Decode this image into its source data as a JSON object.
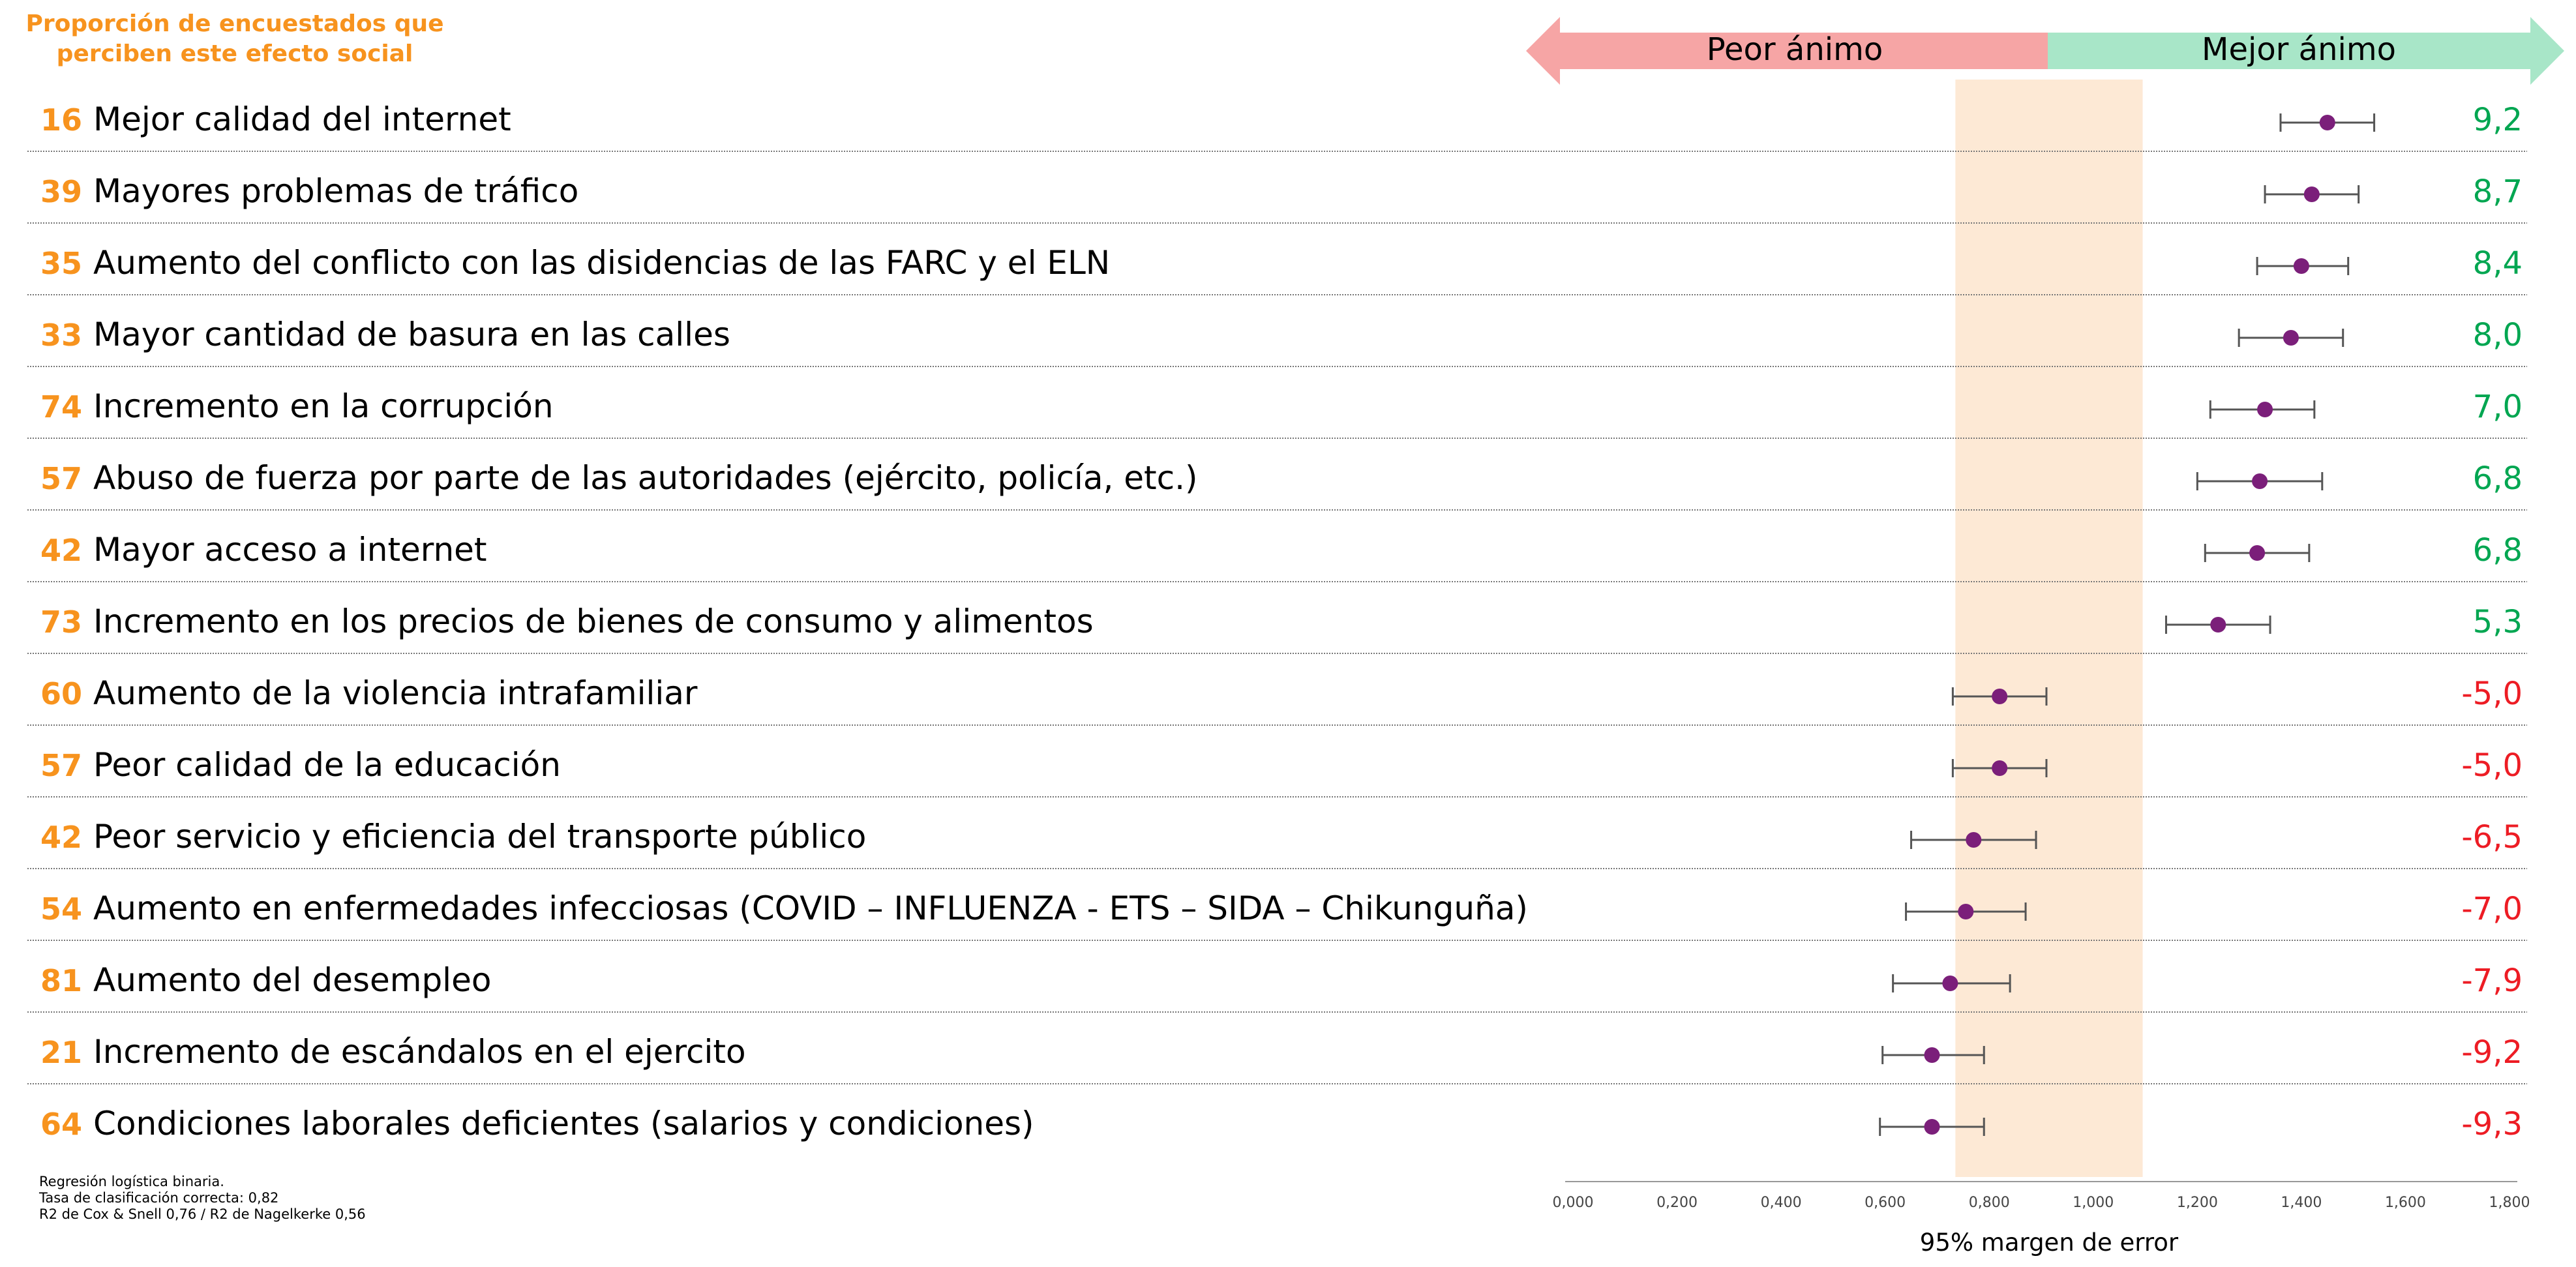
{
  "header": {
    "left_title": "Proporción de encuestados que perciben este efecto social",
    "left_title_lines": [
      "Proporción de encuestados que",
      "perciben este efecto social"
    ]
  },
  "notes": [
    "Regresión logística binaria.",
    "Tasa de clasificación correcta: 0,82",
    "R2 de Cox & Snell 0,76 / R2 de Nagelkerke 0,56"
  ],
  "colors": {
    "orange": "#F7931E",
    "positive": "#00A651",
    "negative": "#ED1C24",
    "point": "#7B1F7A",
    "arrow_left": "#F6A5A5",
    "arrow_right": "#A8E6C8",
    "band": "#FDE9D5"
  },
  "chart_data": {
    "type": "scatter",
    "subtype": "forest-plot",
    "xlabel": "95% margen de error",
    "xlim": [
      0,
      1.8
    ],
    "xticks": [
      "0,000",
      "0,200",
      "0,400",
      "0,600",
      "0,800",
      "1,000",
      "1,200",
      "1,400",
      "1,600",
      "1,800"
    ],
    "xtick_values": [
      0,
      0.2,
      0.4,
      0.6,
      0.8,
      1.0,
      1.2,
      1.4,
      1.6,
      1.8
    ],
    "band_range": [
      0.735,
      1.095
    ],
    "arrows": {
      "left_label": "Peor ánimo",
      "right_label": "Mejor ánimo"
    },
    "rows": [
      {
        "pct": "16",
        "label": "Mejor calidad del internet",
        "value": "9,2",
        "sign": "pos",
        "estimate": 1.45,
        "ci": [
          1.36,
          1.54
        ]
      },
      {
        "pct": "39",
        "label": "Mayores problemas de tráfico",
        "value": "8,7",
        "sign": "pos",
        "estimate": 1.42,
        "ci": [
          1.33,
          1.51
        ]
      },
      {
        "pct": "35",
        "label": "Aumento del conflicto con las disidencias de las FARC y el ELN",
        "value": "8,4",
        "sign": "pos",
        "estimate": 1.4,
        "ci": [
          1.315,
          1.49
        ]
      },
      {
        "pct": "33",
        "label": "Mayor cantidad de basura en las calles",
        "value": "8,0",
        "sign": "pos",
        "estimate": 1.38,
        "ci": [
          1.28,
          1.48
        ]
      },
      {
        "pct": "74",
        "label": "Incremento en la corrupción",
        "value": "7,0",
        "sign": "pos",
        "estimate": 1.33,
        "ci": [
          1.225,
          1.425
        ]
      },
      {
        "pct": "57",
        "label": "Abuso de fuerza por parte de las autoridades (ejército, policía, etc.)",
        "value": "6,8",
        "sign": "pos",
        "estimate": 1.32,
        "ci": [
          1.2,
          1.44
        ]
      },
      {
        "pct": "42",
        "label": "Mayor acceso a internet",
        "value": "6,8",
        "sign": "pos",
        "estimate": 1.315,
        "ci": [
          1.215,
          1.415
        ]
      },
      {
        "pct": "73",
        "label": "Incremento en los precios de bienes de consumo y alimentos",
        "value": "5,3",
        "sign": "pos",
        "estimate": 1.24,
        "ci": [
          1.14,
          1.34
        ]
      },
      {
        "pct": "60",
        "label": "Aumento de la violencia intrafamiliar",
        "value": "-5,0",
        "sign": "neg",
        "estimate": 0.82,
        "ci": [
          0.73,
          0.91
        ]
      },
      {
        "pct": "57",
        "label": "Peor calidad de la educación",
        "value": "-5,0",
        "sign": "neg",
        "estimate": 0.82,
        "ci": [
          0.73,
          0.91
        ]
      },
      {
        "pct": "42",
        "label": "Peor servicio y eficiencia del transporte público",
        "value": "-6,5",
        "sign": "neg",
        "estimate": 0.77,
        "ci": [
          0.65,
          0.89
        ]
      },
      {
        "pct": "54",
        "label": "Aumento en enfermedades infecciosas (COVID – INFLUENZA - ETS – SIDA – Chikunguña)",
        "value": "-7,0",
        "sign": "neg",
        "estimate": 0.755,
        "ci": [
          0.64,
          0.87
        ]
      },
      {
        "pct": "81",
        "label": "Aumento del desempleo",
        "value": "-7,9",
        "sign": "neg",
        "estimate": 0.725,
        "ci": [
          0.615,
          0.84
        ]
      },
      {
        "pct": "21",
        "label": "Incremento de escándalos en el ejercito",
        "value": "-9,2",
        "sign": "neg",
        "estimate": 0.69,
        "ci": [
          0.595,
          0.79
        ]
      },
      {
        "pct": "64",
        "label": "Condiciones laborales deficientes (salarios y condiciones)",
        "value": "-9,3",
        "sign": "neg",
        "estimate": 0.69,
        "ci": [
          0.59,
          0.79
        ]
      }
    ]
  }
}
